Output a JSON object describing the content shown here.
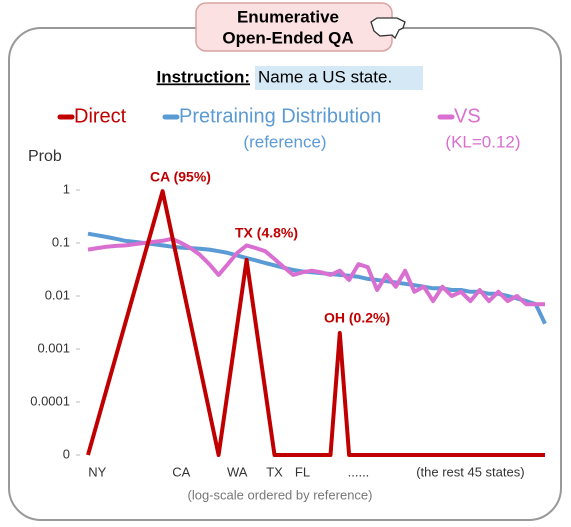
{
  "chart_data": {
    "type": "line",
    "badge": [
      "Enumerative",
      "Open-Ended QA"
    ],
    "instruction_label": "Instruction:",
    "instruction": "Name a US state.",
    "y_label": "Prob",
    "x_label": "(log-scale ordered by reference)",
    "log_scale": true,
    "ylim": [
      1e-05,
      1
    ],
    "yticks": [
      1,
      0.1,
      0.01,
      0.001,
      0.0001,
      {
        "value": 1e-05,
        "label": "0"
      }
    ],
    "xlim": [
      0,
      49
    ],
    "xticks": [
      {
        "value": 1,
        "label": "NY"
      },
      {
        "value": 10,
        "label": "CA"
      },
      {
        "value": 16,
        "label": "WA"
      },
      {
        "value": 20,
        "label": "TX"
      },
      {
        "value": 23,
        "label": "FL"
      },
      {
        "value": 29,
        "label": "......"
      },
      {
        "value": 41,
        "label": "(the rest 45 states)"
      }
    ],
    "annotations": [
      "CA (95%)",
      "TX (4.8%)",
      "OH (0.2%)"
    ],
    "series": [
      {
        "name": "Direct",
        "color": "#c00000",
        "x": [
          0,
          8,
          14,
          17,
          20,
          26,
          27,
          28,
          49
        ],
        "values": [
          0,
          0.95,
          0,
          0.048,
          0,
          0,
          0.002,
          0,
          0
        ]
      },
      {
        "name": "Pretraining Distribution",
        "note": "(reference)",
        "color": "#5b9bd5",
        "x": [
          0,
          1,
          2,
          3,
          4,
          5,
          6,
          7,
          8,
          9,
          10,
          11,
          12,
          13,
          14,
          15,
          16,
          17,
          18,
          19,
          20,
          21,
          22,
          23,
          24,
          25,
          26,
          27,
          28,
          29,
          30,
          31,
          32,
          33,
          34,
          35,
          36,
          37,
          38,
          39,
          40,
          41,
          42,
          43,
          44,
          45,
          46,
          47,
          48,
          49
        ],
        "values": [
          0.15,
          0.14,
          0.13,
          0.12,
          0.11,
          0.105,
          0.1,
          0.095,
          0.09,
          0.085,
          0.082,
          0.08,
          0.078,
          0.075,
          0.07,
          0.065,
          0.058,
          0.052,
          0.047,
          0.042,
          0.038,
          0.034,
          0.031,
          0.029,
          0.028,
          0.027,
          0.026,
          0.025,
          0.024,
          0.023,
          0.021,
          0.02,
          0.019,
          0.018,
          0.017,
          0.016,
          0.015,
          0.014,
          0.014,
          0.013,
          0.013,
          0.012,
          0.012,
          0.011,
          0.011,
          0.01,
          0.009,
          0.008,
          0.007,
          0.003
        ]
      },
      {
        "name": "VS",
        "note": "(KL=0.12)",
        "color": "#d96fd0",
        "x": [
          0,
          1,
          2,
          3,
          4,
          5,
          6,
          7,
          8,
          9,
          10,
          11,
          12,
          13,
          14,
          15,
          16,
          17,
          18,
          19,
          20,
          21,
          22,
          23,
          24,
          25,
          26,
          27,
          28,
          29,
          30,
          31,
          32,
          33,
          34,
          35,
          36,
          37,
          38,
          39,
          40,
          41,
          42,
          43,
          44,
          45,
          46,
          47,
          48,
          49
        ],
        "values": [
          0.075,
          0.08,
          0.085,
          0.088,
          0.09,
          0.095,
          0.1,
          0.105,
          0.11,
          0.12,
          0.1,
          0.08,
          0.06,
          0.04,
          0.025,
          0.04,
          0.065,
          0.09,
          0.08,
          0.07,
          0.05,
          0.035,
          0.025,
          0.028,
          0.03,
          0.028,
          0.025,
          0.03,
          0.02,
          0.04,
          0.035,
          0.013,
          0.025,
          0.015,
          0.03,
          0.012,
          0.015,
          0.008,
          0.015,
          0.01,
          0.012,
          0.008,
          0.013,
          0.008,
          0.012,
          0.008,
          0.01,
          0.007,
          0.007,
          0.007
        ]
      }
    ]
  }
}
